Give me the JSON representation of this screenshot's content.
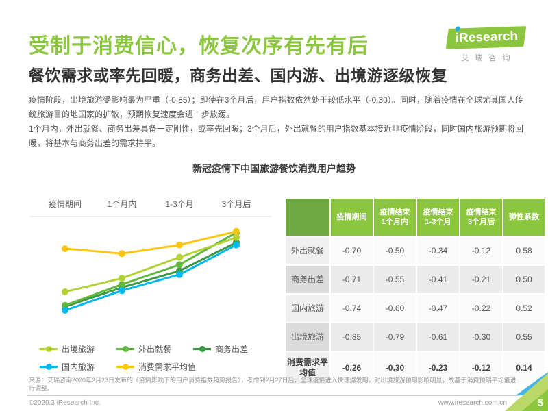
{
  "page": {
    "title": "受制于消费信心，恢复次序有先有后",
    "subtitle": "餐饮需求或率先回暖，商务出差、国内游、出境游逐级恢复",
    "paragraphs": [
      "疫情阶段，出境旅游受影响最为严重（-0.85）；即使在3个月后，用户指数依然处于较低水平（-0.30）。同时，随着疫情在全球尤其国人传统旅游目的地国家的扩散，预期恢复速度会进一步放缓。",
      "1个月内，外出就餐、商务出差具备一定刚性，或率先回暖；3个月后，外出就餐的用户指数基本接近非疫情阶段，同时国内旅游预期将回暖，将基本与商务出差的需求持平。"
    ],
    "chart_title": "新冠疫情下中国旅游餐饮消费用户趋势",
    "source": "来源：艾瑞咨询2020年2月23日发布的《疫情影响下的用户消费指数趋势报告》，考虑到2月27日后，全球疫情进入快速爆发期，对出境旅游预期影响明显，故基于消费预期平均值进行调整。",
    "footer_left": "©2020.3 iResearch Inc.",
    "footer_right": "www.iresearch.com.cn",
    "page_number": "5"
  },
  "logo": {
    "brand": "iResearch",
    "cn": "艾瑞咨询"
  },
  "colors": {
    "accent_green": "#8cc63f",
    "table_header_green": "#8cc63f",
    "table_corner_green": "#6fa944",
    "logo_dot_blue": "#29abe2",
    "corner_blue": "#45b6e6",
    "corner_light_green": "#b9d867",
    "corner_green": "#8cc63f"
  },
  "chart_data": {
    "type": "line",
    "title": "新冠疫情下中国旅游餐饮消费用户趋势",
    "categories": [
      "疫情期间",
      "1个月内",
      "1-3个月",
      "3个月后"
    ],
    "series": [
      {
        "name": "商务出差",
        "color": "#3a9a44",
        "values": [
          -0.71,
          -0.55,
          -0.41,
          -0.21
        ],
        "plotted": [
          -0.73,
          -0.575,
          -0.44,
          -0.21
        ]
      },
      {
        "name": "外出就餐",
        "color": "#62b83e",
        "values": [
          -0.7,
          -0.5,
          -0.34,
          -0.12
        ],
        "plotted": [
          -0.72,
          -0.55,
          -0.39,
          -0.13
        ]
      },
      {
        "name": "出境旅游",
        "color": "#b2d235",
        "values": [
          -0.85,
          -0.79,
          -0.61,
          -0.3
        ],
        "plotted": [
          -0.61,
          -0.5,
          -0.33,
          -0.17
        ]
      },
      {
        "name": "国内旅游",
        "color": "#00b7ee",
        "values": [
          -0.74,
          -0.6,
          -0.47,
          -0.22
        ],
        "plotted": [
          -0.76,
          -0.6,
          -0.47,
          -0.23
        ]
      },
      {
        "name": "消费需求平均值",
        "color": "#fdc513",
        "values": [
          -0.26,
          -0.3,
          -0.23,
          -0.12
        ],
        "plotted": [
          -0.26,
          -0.3,
          -0.23,
          -0.12
        ]
      }
    ],
    "legend_rows": [
      [
        "出境旅游",
        "外出就餐",
        "商务出差"
      ],
      [
        "国内旅游",
        "消费需求平均值"
      ]
    ],
    "axis_note": "labels on top, no y axis, gridlines off",
    "ylim": [
      -0.9,
      0
    ]
  },
  "table": {
    "col_headers": [
      [
        ""
      ],
      [
        "疫情期间"
      ],
      [
        "疫情结束",
        "1个月内"
      ],
      [
        "疫情结束",
        "1-3个月"
      ],
      [
        "疫情结束",
        "3个月后"
      ],
      [
        "弹性系数"
      ]
    ],
    "rows": [
      {
        "label": "外出就餐",
        "values": [
          "-0.70",
          "-0.50",
          "-0.34",
          "-0.12",
          "0.58"
        ],
        "bold": false
      },
      {
        "label": "商务出差",
        "values": [
          "-0.71",
          "-0.55",
          "-0.41",
          "-0.21",
          "0.50"
        ],
        "bold": false
      },
      {
        "label": "国内旅游",
        "values": [
          "-0.74",
          "-0.60",
          "-0.47",
          "-0.22",
          "0.52"
        ],
        "bold": false
      },
      {
        "label": "出境旅游",
        "values": [
          "-0.85",
          "-0.79",
          "-0.61",
          "-0.30",
          "0.55"
        ],
        "bold": false
      },
      {
        "label": "消费需求平均值",
        "values": [
          "-0.26",
          "-0.30",
          "-0.23",
          "-0.12",
          "0.14"
        ],
        "bold": true
      }
    ]
  }
}
